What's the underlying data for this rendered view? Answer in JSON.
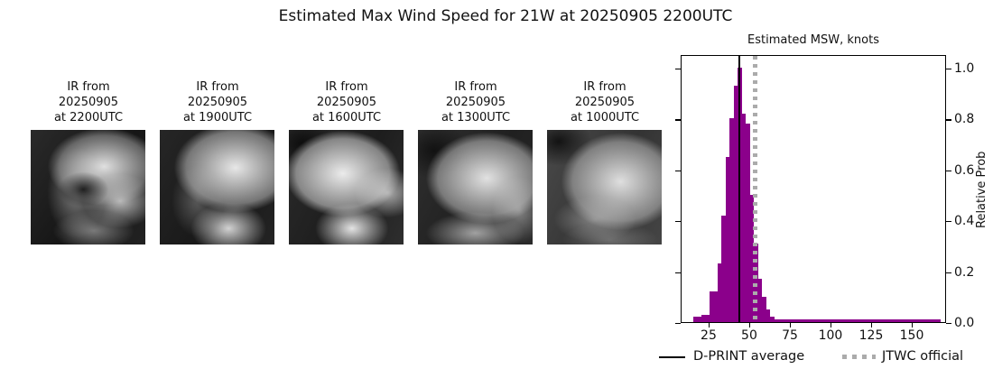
{
  "title": "Estimated Max Wind Speed for 21W at 20250905 2200UTC",
  "ir_panels": [
    {
      "lines": [
        "IR from",
        "20250905",
        "at 2200UTC"
      ]
    },
    {
      "lines": [
        "IR from",
        "20250905",
        "at 1900UTC"
      ]
    },
    {
      "lines": [
        "IR from",
        "20250905",
        "at 1600UTC"
      ]
    },
    {
      "lines": [
        "IR from",
        "20250905",
        "at 1300UTC"
      ]
    },
    {
      "lines": [
        "IR from",
        "20250905",
        "at 1000UTC"
      ]
    }
  ],
  "chart_data": {
    "type": "bar",
    "title": "Estimated MSW, knots",
    "ylabel": "Relative Prob",
    "bar_color": "#8b008b",
    "xlim": [
      7.8,
      171.1
    ],
    "ylim": [
      0,
      1.053
    ],
    "x_ticks": [
      25,
      50,
      75,
      100,
      125,
      150
    ],
    "y_ticks": [
      0.0,
      0.2,
      0.4,
      0.6,
      0.8,
      1.0
    ],
    "grid": false,
    "legend_position": "below",
    "bins": [
      {
        "x0": 15.0,
        "x1": 17.5,
        "p": 0.02
      },
      {
        "x0": 17.5,
        "x1": 20.0,
        "p": 0.02
      },
      {
        "x0": 20.0,
        "x1": 22.5,
        "p": 0.03
      },
      {
        "x0": 22.5,
        "x1": 25.0,
        "p": 0.03
      },
      {
        "x0": 25.0,
        "x1": 27.5,
        "p": 0.12
      },
      {
        "x0": 27.5,
        "x1": 30.0,
        "p": 0.12
      },
      {
        "x0": 30.0,
        "x1": 32.5,
        "p": 0.23
      },
      {
        "x0": 32.5,
        "x1": 35.0,
        "p": 0.42
      },
      {
        "x0": 35.0,
        "x1": 37.5,
        "p": 0.65
      },
      {
        "x0": 37.5,
        "x1": 40.0,
        "p": 0.8
      },
      {
        "x0": 40.0,
        "x1": 42.5,
        "p": 0.93
      },
      {
        "x0": 42.5,
        "x1": 45.0,
        "p": 1.0
      },
      {
        "x0": 45.0,
        "x1": 47.5,
        "p": 0.82
      },
      {
        "x0": 47.5,
        "x1": 50.0,
        "p": 0.78
      },
      {
        "x0": 50.0,
        "x1": 52.5,
        "p": 0.5
      },
      {
        "x0": 52.5,
        "x1": 55.0,
        "p": 0.31
      },
      {
        "x0": 55.0,
        "x1": 57.5,
        "p": 0.17
      },
      {
        "x0": 57.5,
        "x1": 60.0,
        "p": 0.1
      },
      {
        "x0": 60.0,
        "x1": 62.5,
        "p": 0.05
      },
      {
        "x0": 62.5,
        "x1": 65.0,
        "p": 0.02
      },
      {
        "x0": 65.0,
        "x1": 167.0,
        "p": 0.01
      }
    ],
    "average_line": {
      "label": "D-PRINT average",
      "value": 43.3,
      "color": "#000000",
      "style": "solid"
    },
    "official_line": {
      "label": "JTWC official",
      "value": 53.0,
      "color": "#ababab",
      "style": "dotted"
    }
  }
}
